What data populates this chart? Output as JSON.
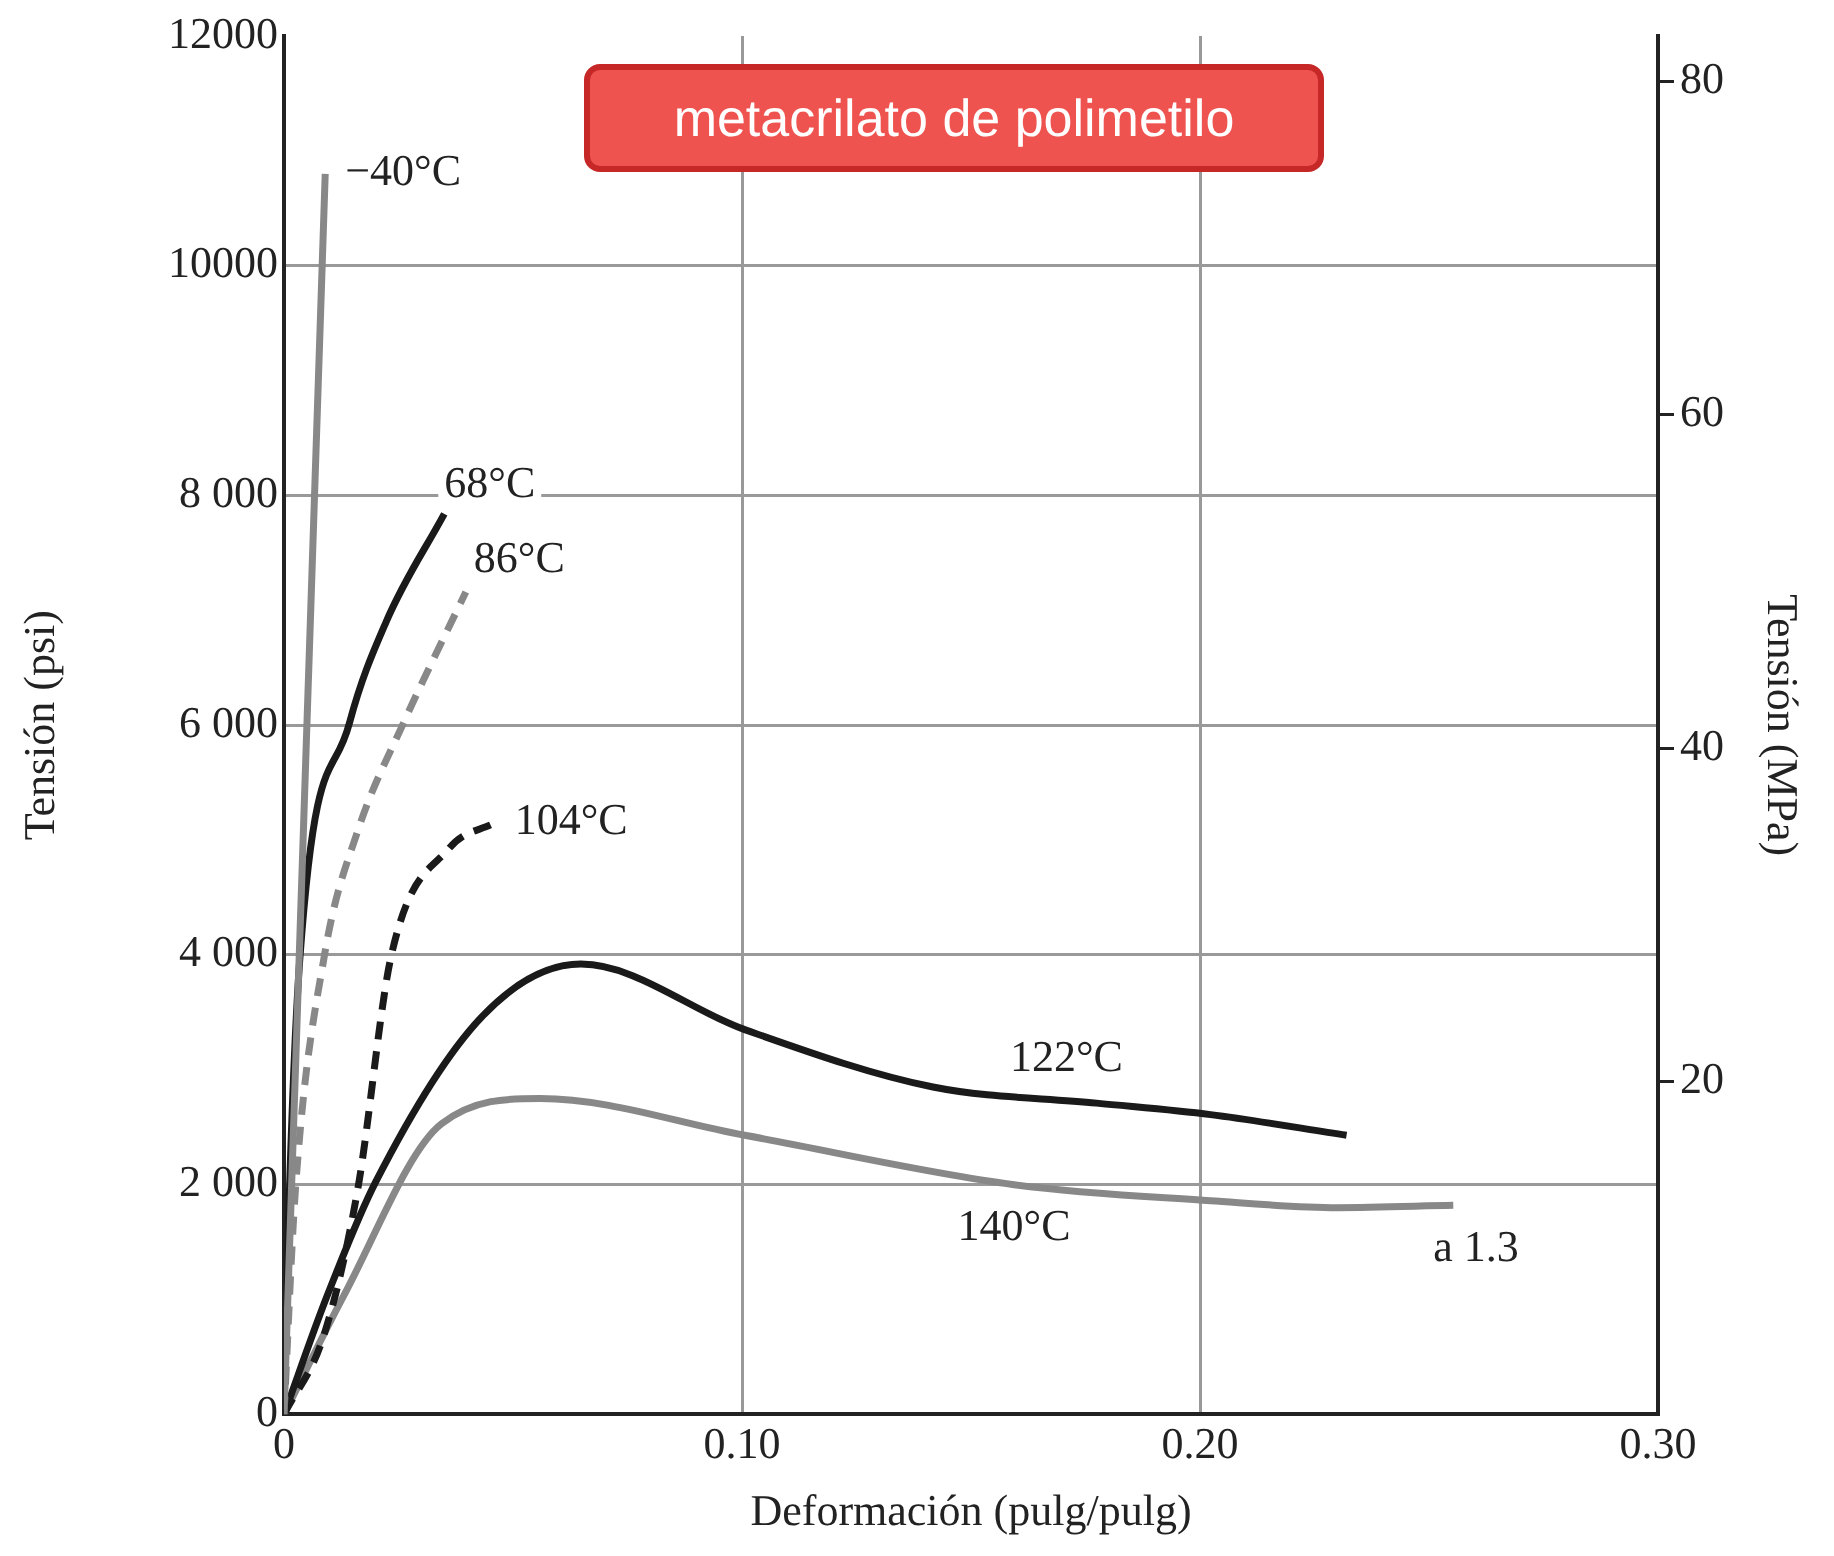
{
  "chart_data": {
    "type": "line",
    "title": "metacrilato de polimetilo",
    "xlabel": "Deformación (pulg/pulg)",
    "ylabel": "Tensión (psi)",
    "y2label": "Tensión (MPa)",
    "xlim": [
      0,
      0.3
    ],
    "xticks": [
      0,
      {
        "value": 0.1,
        "label": "0.10"
      },
      {
        "value": 0.2,
        "label": "0.20"
      },
      {
        "value": 0.3,
        "label": "0.30"
      }
    ],
    "ylim": [
      0,
      12000
    ],
    "yticks": [
      0,
      {
        "value": 2000,
        "label": "2 000"
      },
      {
        "value": 4000,
        "label": "4 000"
      },
      {
        "value": 6000,
        "label": "6 000"
      },
      {
        "value": 8000,
        "label": "8 000"
      },
      {
        "value": 10000,
        "label": "10000"
      },
      {
        "value": 12000,
        "label": "12000"
      }
    ],
    "y2lim": [
      0,
      82.74
    ],
    "y2ticks": [
      20,
      40,
      60,
      80
    ],
    "grid": true,
    "legend": false,
    "marker": "none",
    "series": [
      {
        "name": "−40°C",
        "color": "#888888",
        "line_style": "solid",
        "x": [
          0,
          0.009
        ],
        "values": [
          0,
          10800
        ]
      },
      {
        "name": "68°C",
        "color": "#1a1a1a",
        "line_style": "solid",
        "x": [
          0,
          0.0012,
          0.0035,
          0.0143,
          0.0223,
          0.035
        ],
        "values": [
          0,
          1960,
          3990,
          6020,
          6900,
          7840
        ]
      },
      {
        "name": "86°C",
        "color": "#888888",
        "line_style": "dashed",
        "x": [
          0,
          0.0025,
          0.0088,
          0.0161,
          0.0261,
          0.0397
        ],
        "values": [
          0,
          1960,
          3990,
          5080,
          6020,
          7160
        ]
      },
      {
        "name": "104°C",
        "color": "#1a1a1a",
        "line_style": "dashed",
        "x": [
          0,
          0.0088,
          0.0161,
          0.0234,
          0.0361,
          0.046
        ],
        "values": [
          0,
          700,
          1960,
          3990,
          4930,
          5150
        ]
      },
      {
        "name": "122°C",
        "color": "#1a1a1a",
        "line_style": "solid",
        "x": [
          0,
          0.0094,
          0.0201,
          0.0434,
          0.0648,
          0.1006,
          0.1417,
          0.1774,
          0.2023,
          0.232
        ],
        "values": [
          0,
          1030,
          2030,
          3470,
          3920,
          3350,
          2850,
          2710,
          2610,
          2430
        ]
      },
      {
        "name": "140°C",
        "color": "#888888",
        "line_style": "solid",
        "x": [
          0,
          0.013,
          0.0344,
          0.0559,
          0.1006,
          0.1594,
          0.2023,
          0.23,
          0.2553
        ],
        "values": [
          0,
          1030,
          2530,
          2750,
          2430,
          2000,
          1860,
          1800,
          1820
        ]
      }
    ],
    "annotations": [
      {
        "text": "a 1.3",
        "x": 0.2553,
        "y": 1820
      }
    ]
  }
}
